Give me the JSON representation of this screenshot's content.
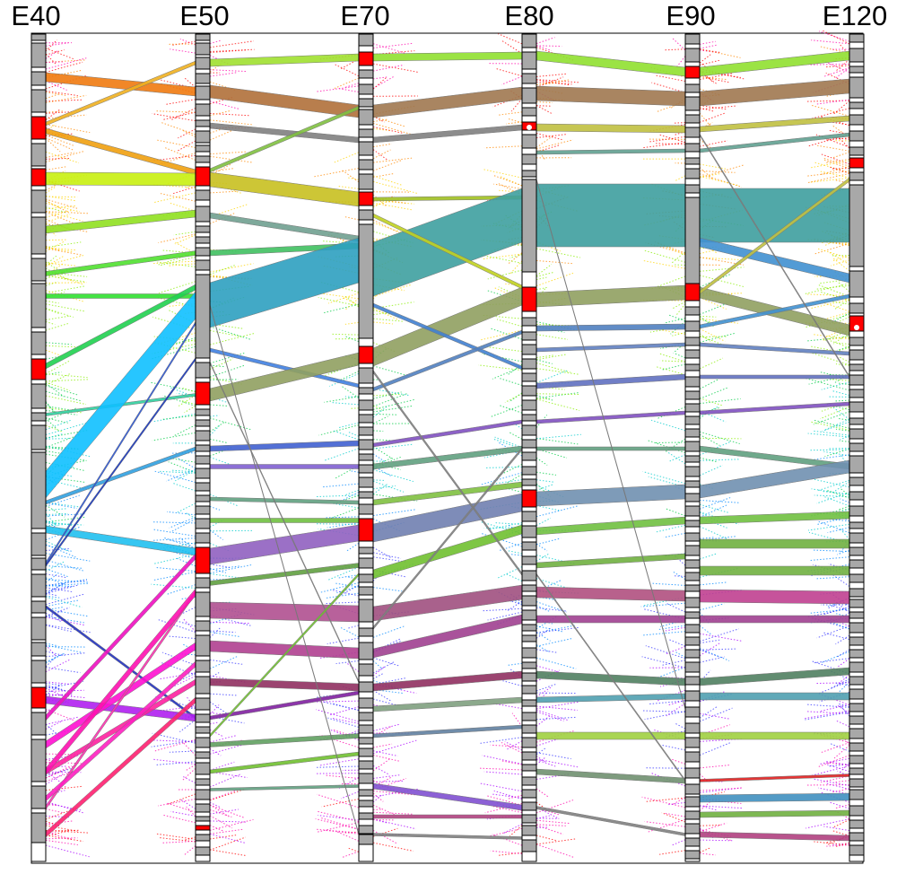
{
  "diagram": {
    "stages": [
      {
        "label": "E40"
      },
      {
        "label": "E50"
      },
      {
        "label": "E70"
      },
      {
        "label": "E80"
      },
      {
        "label": "E90"
      },
      {
        "label": "E120"
      }
    ],
    "colors": {
      "node_fill": "#a8a8a8",
      "node_highlight": "#ff0000",
      "node_border": "#000000",
      "frame": "#000000"
    },
    "flow_description": "Alluvial diagram of cluster membership across stages; large bands include a teal flow from E50 to E120, an olive-green band E40 to E70, a magenta fan from E40 lower clusters into E50"
  }
}
